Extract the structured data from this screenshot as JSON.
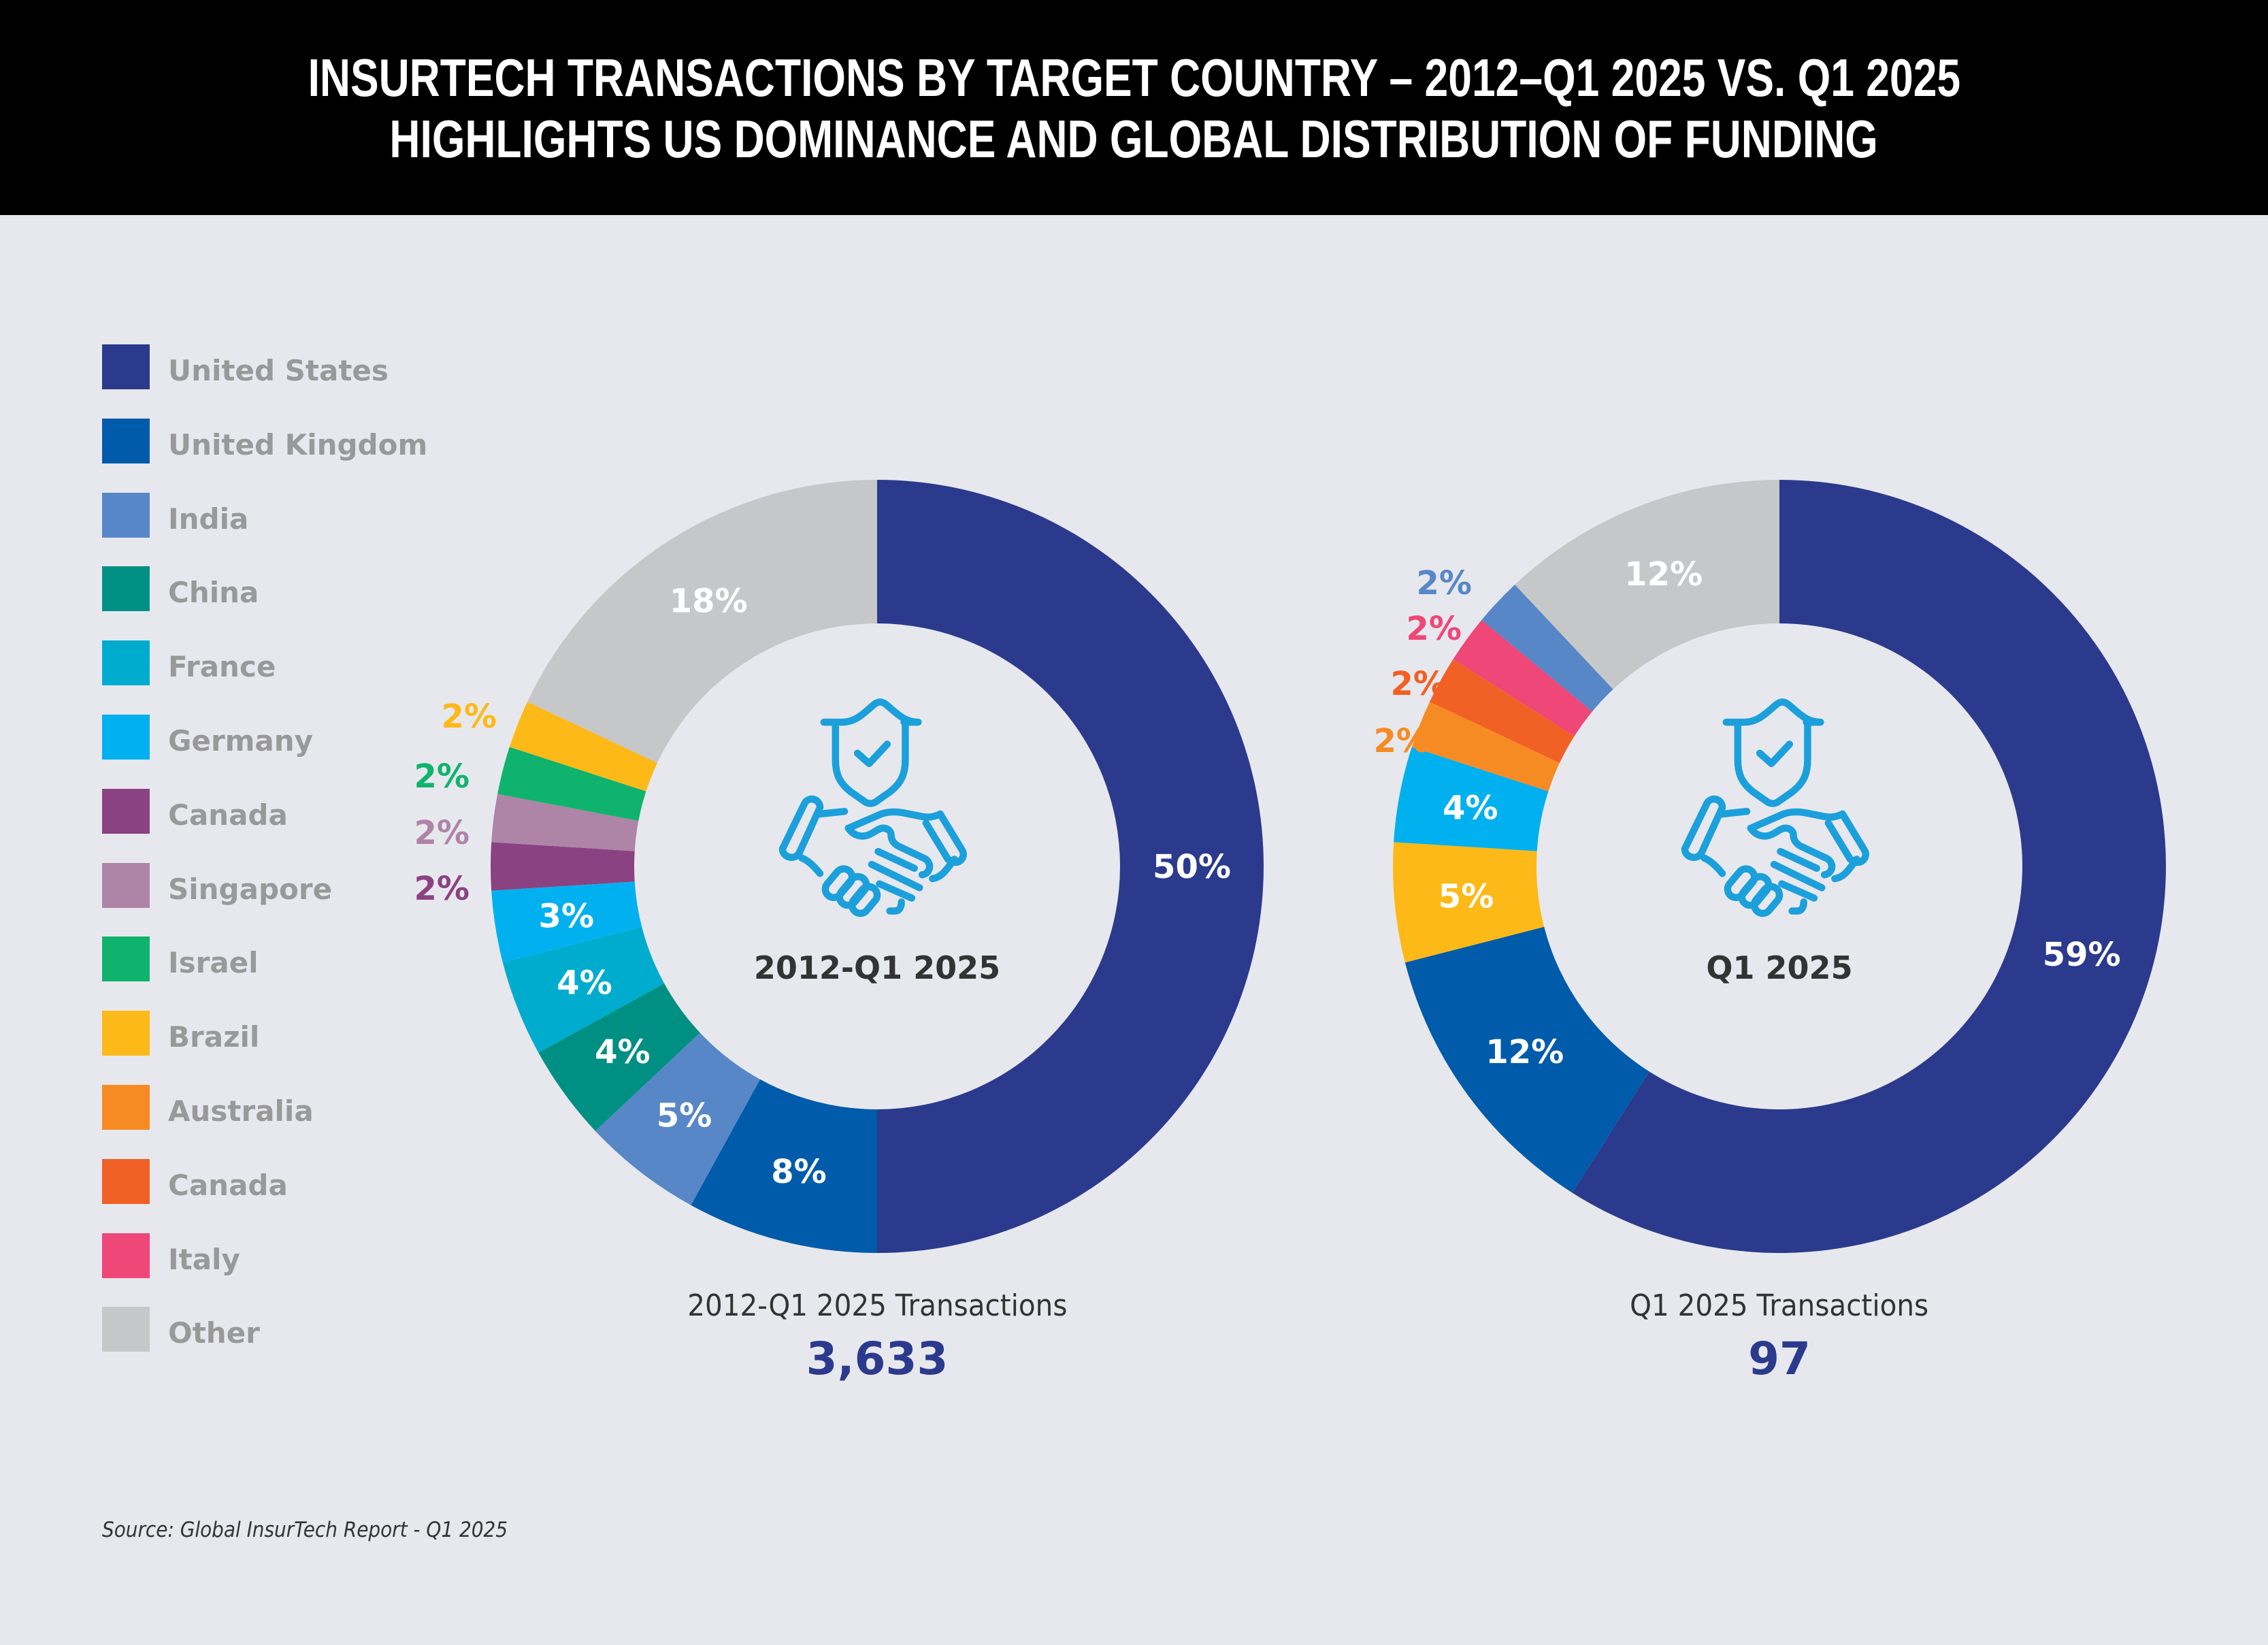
{
  "header": {
    "title_line1": "INSURTECH TRANSACTIONS BY TARGET COUNTRY – 2012–Q1 2025 VS. Q1 2025",
    "title_line2": "HIGHLIGHTS US DOMINANCE AND GLOBAL DISTRIBUTION OF FUNDING"
  },
  "legend": [
    {
      "label": "United States",
      "color": "#2b3a8c"
    },
    {
      "label": "United Kingdom",
      "color": "#005baa"
    },
    {
      "label": "India",
      "color": "#5787c7"
    },
    {
      "label": "China",
      "color": "#009083"
    },
    {
      "label": "France",
      "color": "#00acce"
    },
    {
      "label": "Germany",
      "color": "#00b0ef"
    },
    {
      "label": "Canada",
      "color": "#8b4283"
    },
    {
      "label": "Singapore",
      "color": "#ae84a7"
    },
    {
      "label": "Israel",
      "color": "#10b36e"
    },
    {
      "label": "Brazil",
      "color": "#fdb918"
    },
    {
      "label": "Australia",
      "color": "#f68b23"
    },
    {
      "label": "Canada",
      "color": "#f16024"
    },
    {
      "label": "Italy",
      "color": "#ee4778"
    },
    {
      "label": "Other",
      "color": "#c6c7c9"
    }
  ],
  "icon": {
    "name": "shield-handshake-icon",
    "color": "#1ba0db"
  },
  "chart_data": [
    {
      "type": "pie",
      "variant": "donut",
      "title": "2012-Q1 2025",
      "caption": "2012-Q1 2025 Transactions",
      "total": "3,633",
      "direction": "clockwise-from-top",
      "slices": [
        {
          "name": "United States",
          "value": 50,
          "label": "50%",
          "color": "#2b3a8c",
          "label_position": "inside"
        },
        {
          "name": "United Kingdom",
          "value": 8,
          "label": "8%",
          "color": "#005baa",
          "label_position": "inside"
        },
        {
          "name": "India",
          "value": 5,
          "label": "5%",
          "color": "#5787c7",
          "label_position": "inside"
        },
        {
          "name": "China",
          "value": 4,
          "label": "4%",
          "color": "#009083",
          "label_position": "inside"
        },
        {
          "name": "France",
          "value": 4,
          "label": "4%",
          "color": "#00acce",
          "label_position": "inside"
        },
        {
          "name": "Germany",
          "value": 3,
          "label": "3%",
          "color": "#00b0ef",
          "label_position": "inside"
        },
        {
          "name": "Canada",
          "value": 2,
          "label": "2%",
          "color": "#8b4283",
          "label_position": "outside"
        },
        {
          "name": "Singapore",
          "value": 2,
          "label": "2%",
          "color": "#ae84a7",
          "label_position": "outside"
        },
        {
          "name": "Israel",
          "value": 2,
          "label": "2%",
          "color": "#10b36e",
          "label_position": "outside"
        },
        {
          "name": "Brazil",
          "value": 2,
          "label": "2%",
          "color": "#fdb918",
          "label_position": "outside"
        },
        {
          "name": "Other",
          "value": 18,
          "label": "18%",
          "color": "#c6c7c9",
          "label_position": "inside"
        }
      ]
    },
    {
      "type": "pie",
      "variant": "donut",
      "title": "Q1 2025",
      "caption": "Q1 2025 Transactions",
      "total": "97",
      "direction": "clockwise-from-top",
      "slices": [
        {
          "name": "United States",
          "value": 59,
          "label": "59%",
          "color": "#2b3a8c",
          "label_position": "inside"
        },
        {
          "name": "United Kingdom",
          "value": 12,
          "label": "12%",
          "color": "#005baa",
          "label_position": "inside"
        },
        {
          "name": "Brazil",
          "value": 5,
          "label": "5%",
          "color": "#fdb918",
          "label_position": "inside"
        },
        {
          "name": "Germany",
          "value": 4,
          "label": "4%",
          "color": "#00b0ef",
          "label_position": "inside"
        },
        {
          "name": "Australia",
          "value": 2,
          "label": "2%",
          "color": "#f68b23",
          "label_position": "outside"
        },
        {
          "name": "Canada",
          "value": 2,
          "label": "2%",
          "color": "#f16024",
          "label_position": "outside"
        },
        {
          "name": "Italy",
          "value": 2,
          "label": "2%",
          "color": "#ee4778",
          "label_position": "outside"
        },
        {
          "name": "India",
          "value": 2,
          "label": "2%",
          "color": "#5787c7",
          "label_position": "outside"
        },
        {
          "name": "Other",
          "value": 12,
          "label": "12%",
          "color": "#c6c7c9",
          "label_position": "inside"
        }
      ]
    }
  ],
  "footer": {
    "source": "Source: Global InsurTech Report - Q1 2025"
  }
}
